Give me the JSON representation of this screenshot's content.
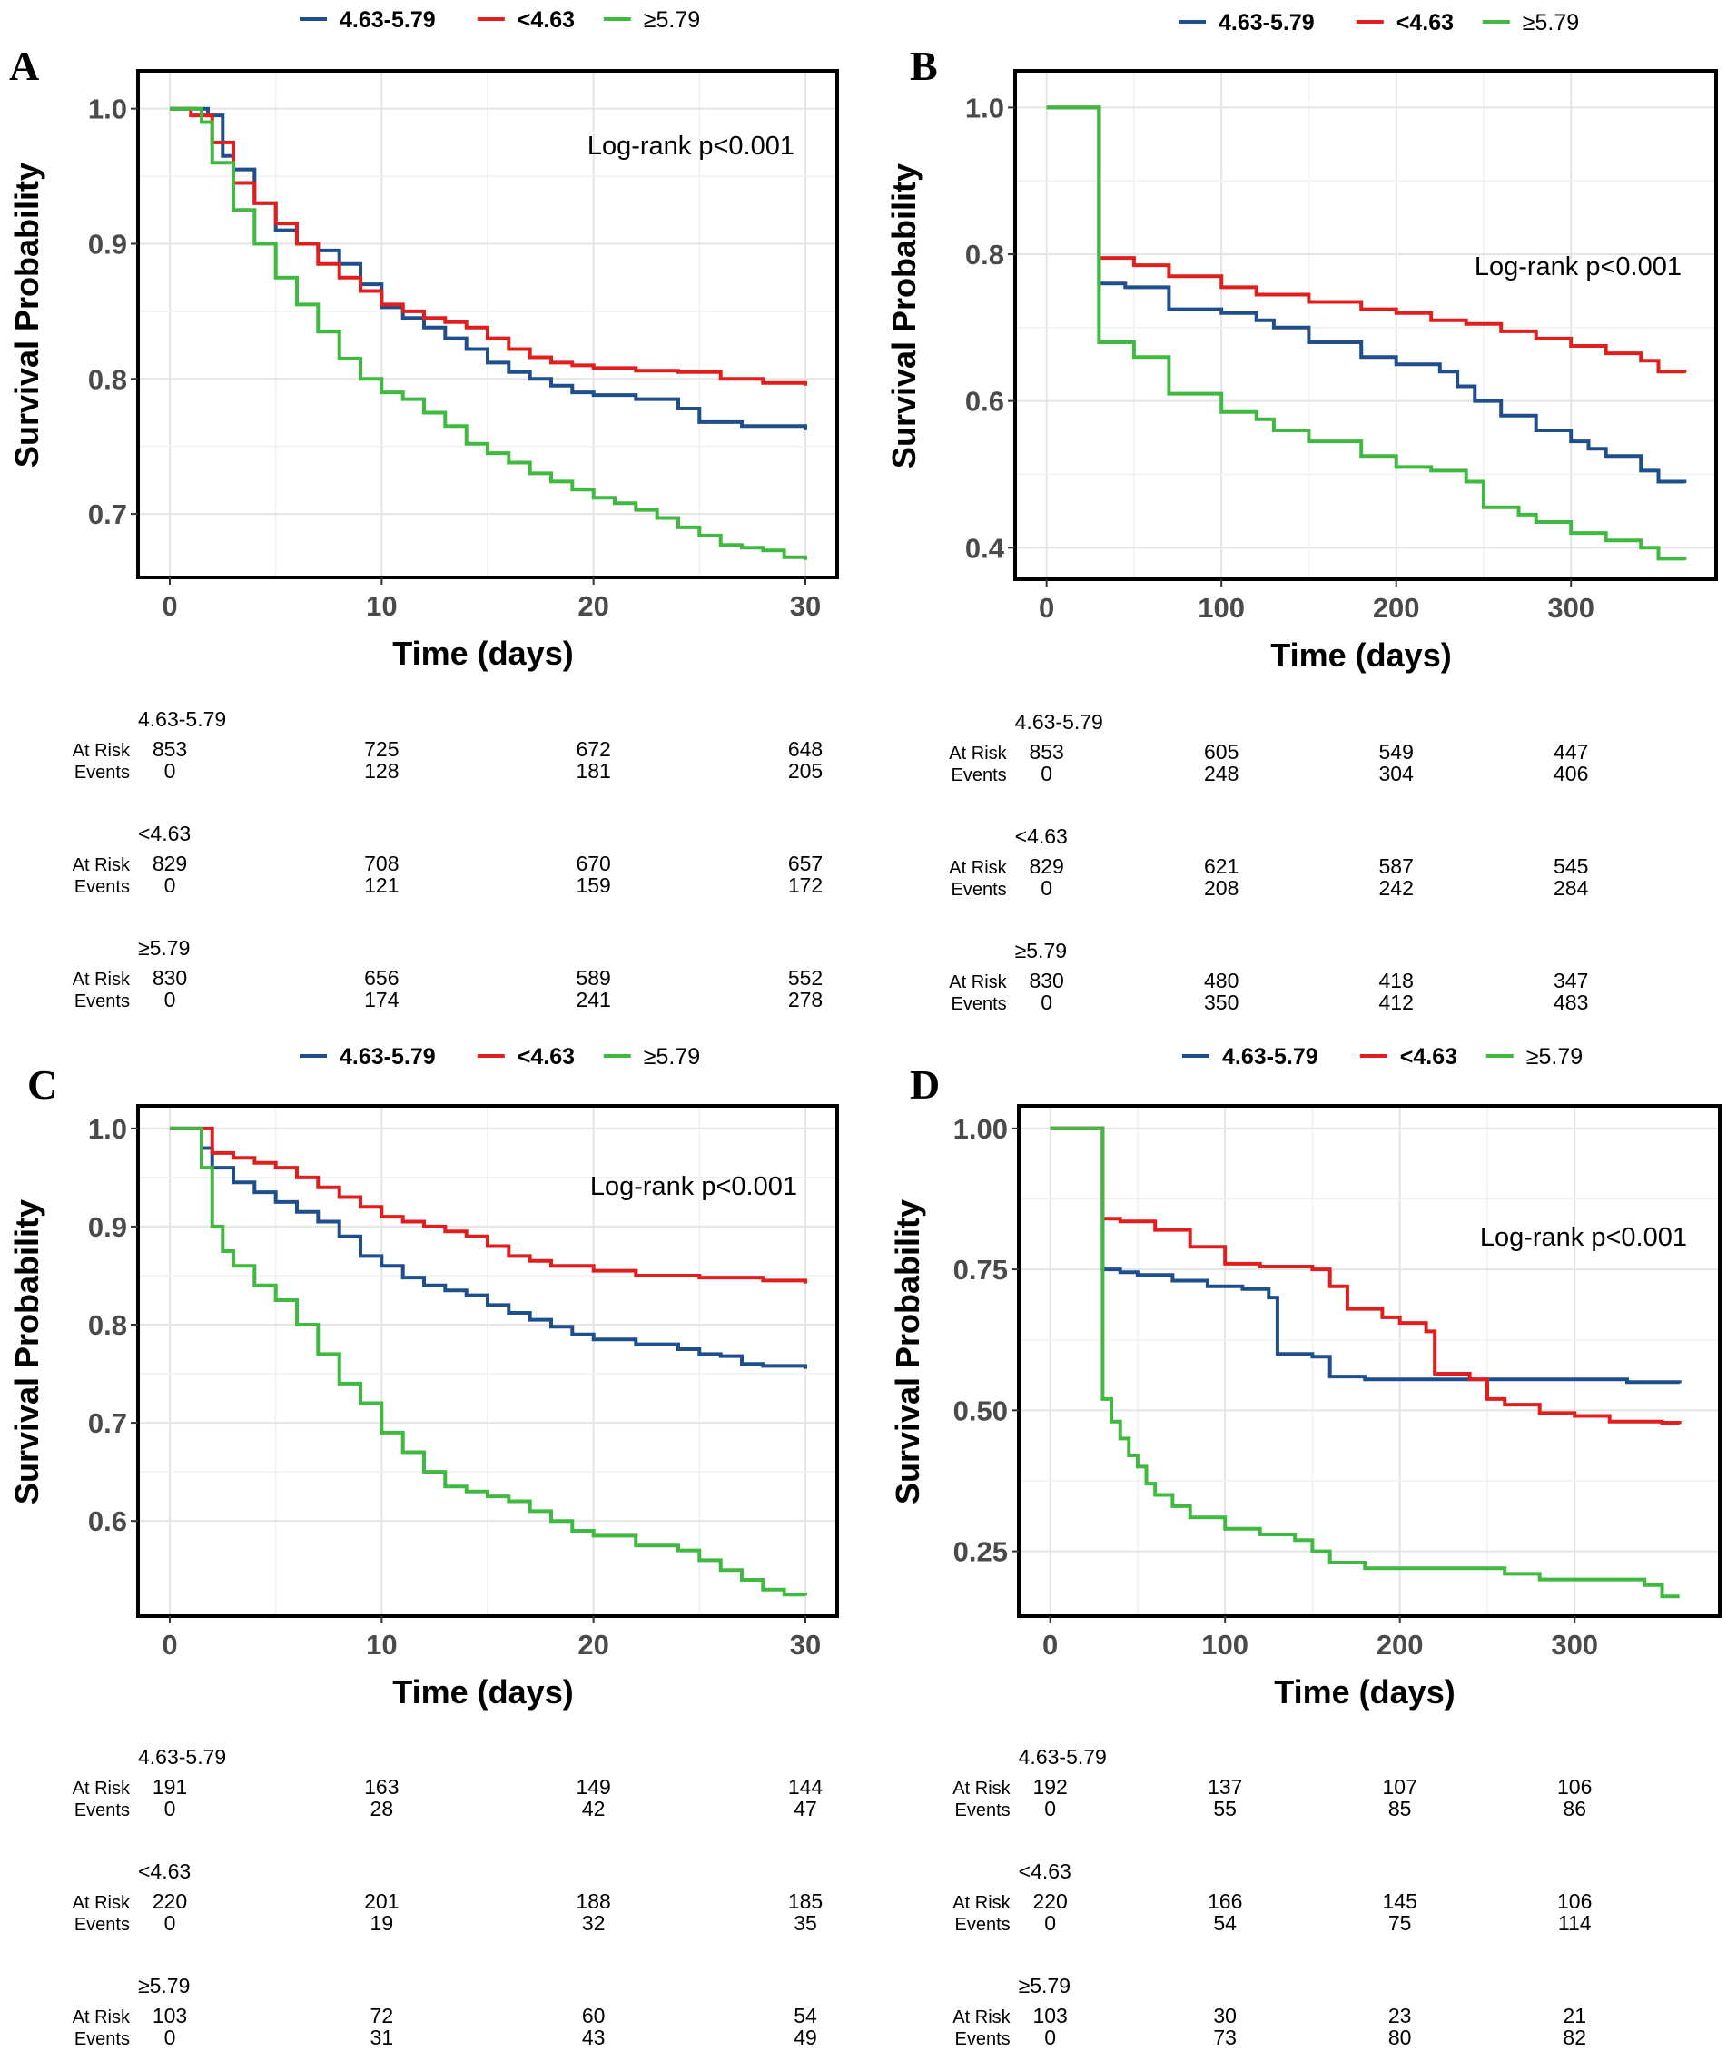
{
  "legend": {
    "items": [
      {
        "label": "4.63-5.79",
        "color": "#1f4e8c",
        "bold": true
      },
      {
        "label": "<4.63",
        "color": "#e01e1e",
        "bold": true
      },
      {
        "label": "≥5.79",
        "color": "#3fb93f",
        "bold": false
      }
    ]
  },
  "risk_row_labels": {
    "at_risk": "At Risk",
    "events": "Events"
  },
  "chart_data": [
    {
      "type": "line",
      "panel": "A",
      "xlabel": "Time (days)",
      "ylabel": "Survival Probability",
      "annotation": "Log-rank p<0.001",
      "xlim": [
        -1.5,
        31.5
      ],
      "ylim": [
        0.653,
        1.028
      ],
      "xticks": [
        0,
        10,
        20,
        30
      ],
      "yticks": [
        1.0,
        0.9,
        0.8,
        0.7
      ],
      "ytick_labels": [
        "1.0",
        "0.9",
        "0.8",
        "0.7"
      ],
      "grid": true,
      "series": [
        {
          "name": "4.63-5.79",
          "x": [
            0,
            1,
            1.8,
            2.5,
            3,
            4,
            5,
            6,
            7,
            8,
            9,
            10,
            11,
            12,
            13,
            14,
            15,
            16,
            17,
            18,
            19,
            20,
            22,
            24,
            25,
            27,
            30
          ],
          "y": [
            1.0,
            1.0,
            0.995,
            0.965,
            0.955,
            0.93,
            0.91,
            0.9,
            0.895,
            0.885,
            0.87,
            0.853,
            0.845,
            0.838,
            0.83,
            0.822,
            0.812,
            0.805,
            0.8,
            0.795,
            0.79,
            0.788,
            0.785,
            0.778,
            0.768,
            0.765,
            0.762
          ]
        },
        {
          "name": "<4.63",
          "x": [
            0,
            1,
            2,
            3,
            4,
            5,
            6,
            7,
            8,
            9,
            10,
            11,
            12,
            13,
            14,
            15,
            16,
            17,
            18,
            19,
            20,
            22,
            24,
            26,
            28,
            30
          ],
          "y": [
            1.0,
            0.995,
            0.975,
            0.945,
            0.93,
            0.915,
            0.9,
            0.885,
            0.875,
            0.865,
            0.855,
            0.85,
            0.845,
            0.842,
            0.838,
            0.83,
            0.822,
            0.816,
            0.812,
            0.81,
            0.808,
            0.806,
            0.805,
            0.8,
            0.797,
            0.795
          ]
        },
        {
          "name": "≥5.79",
          "x": [
            0,
            1,
            1.5,
            2,
            3,
            4,
            5,
            6,
            7,
            8,
            9,
            10,
            11,
            12,
            13,
            14,
            15,
            16,
            17,
            18,
            19,
            20,
            21,
            22,
            23,
            24,
            25,
            26,
            27,
            28,
            29,
            30
          ],
          "y": [
            1.0,
            1.0,
            0.99,
            0.96,
            0.925,
            0.9,
            0.875,
            0.855,
            0.835,
            0.815,
            0.8,
            0.79,
            0.785,
            0.775,
            0.765,
            0.752,
            0.745,
            0.738,
            0.73,
            0.724,
            0.718,
            0.712,
            0.708,
            0.703,
            0.697,
            0.69,
            0.684,
            0.677,
            0.675,
            0.673,
            0.668,
            0.666
          ]
        }
      ],
      "risk_table": {
        "times": [
          0,
          10,
          20,
          30
        ],
        "groups": [
          {
            "name": "4.63-5.79",
            "at_risk": [
              "853",
              "725",
              "672",
              "648"
            ],
            "events": [
              "0",
              "128",
              "181",
              "205"
            ]
          },
          {
            "name": "<4.63",
            "at_risk": [
              "829",
              "708",
              "670",
              "657"
            ],
            "events": [
              "0",
              "121",
              "159",
              "172"
            ]
          },
          {
            "name": "≥5.79",
            "at_risk": [
              "830",
              "656",
              "589",
              "552"
            ],
            "events": [
              "0",
              "174",
              "241",
              "278"
            ]
          }
        ]
      }
    },
    {
      "type": "line",
      "panel": "B",
      "xlabel": "Time (days)",
      "ylabel": "Survival Probability",
      "annotation": "Log-rank p<0.001",
      "xlim": [
        -18,
        383
      ],
      "ylim": [
        0.357,
        1.05
      ],
      "xticks": [
        0,
        100,
        200,
        300
      ],
      "yticks": [
        1.0,
        0.8,
        0.6,
        0.4
      ],
      "ytick_labels": [
        "1.0",
        "0.8",
        "0.6",
        "0.4"
      ],
      "grid": true,
      "series": [
        {
          "name": "4.63-5.79",
          "x": [
            0,
            30,
            30,
            45,
            70,
            100,
            120,
            130,
            150,
            180,
            200,
            225,
            235,
            245,
            260,
            280,
            300,
            310,
            320,
            340,
            350,
            365
          ],
          "y": [
            1.0,
            1.0,
            0.76,
            0.755,
            0.725,
            0.72,
            0.71,
            0.7,
            0.68,
            0.66,
            0.65,
            0.64,
            0.62,
            0.6,
            0.58,
            0.56,
            0.545,
            0.535,
            0.525,
            0.505,
            0.49,
            0.488
          ]
        },
        {
          "name": "<4.63",
          "x": [
            0,
            30,
            30,
            50,
            70,
            100,
            120,
            150,
            180,
            200,
            220,
            240,
            260,
            280,
            300,
            320,
            340,
            350,
            365
          ],
          "y": [
            1.0,
            1.0,
            0.795,
            0.785,
            0.77,
            0.755,
            0.745,
            0.735,
            0.725,
            0.72,
            0.71,
            0.705,
            0.695,
            0.685,
            0.675,
            0.665,
            0.655,
            0.64,
            0.638
          ]
        },
        {
          "name": "≥5.79",
          "x": [
            0,
            30,
            30,
            50,
            70,
            100,
            120,
            130,
            150,
            180,
            200,
            220,
            240,
            250,
            270,
            280,
            300,
            320,
            340,
            350,
            365
          ],
          "y": [
            1.0,
            1.0,
            0.68,
            0.66,
            0.61,
            0.585,
            0.575,
            0.56,
            0.545,
            0.525,
            0.51,
            0.505,
            0.49,
            0.455,
            0.445,
            0.435,
            0.42,
            0.41,
            0.4,
            0.385,
            0.383
          ]
        }
      ],
      "risk_table": {
        "times": [
          0,
          100,
          200,
          300
        ],
        "groups": [
          {
            "name": "4.63-5.79",
            "at_risk": [
              "853",
              "605",
              "549",
              "447"
            ],
            "events": [
              "0",
              "248",
              "304",
              "406"
            ]
          },
          {
            "name": "<4.63",
            "at_risk": [
              "829",
              "621",
              "587",
              "545"
            ],
            "events": [
              "0",
              "208",
              "242",
              "284"
            ]
          },
          {
            "name": "≥5.79",
            "at_risk": [
              "830",
              "480",
              "418",
              "347"
            ],
            "events": [
              "0",
              "350",
              "412",
              "483"
            ]
          }
        ]
      }
    },
    {
      "type": "line",
      "panel": "C",
      "xlabel": "Time (days)",
      "ylabel": "Survival Probability",
      "annotation": "Log-rank p<0.001",
      "xlim": [
        -1.5,
        31.5
      ],
      "ylim": [
        0.503,
        1.023
      ],
      "xticks": [
        0,
        10,
        20,
        30
      ],
      "yticks": [
        1.0,
        0.9,
        0.8,
        0.7,
        0.6
      ],
      "ytick_labels": [
        "1.0",
        "0.9",
        "0.8",
        "0.7",
        "0.6"
      ],
      "grid": true,
      "series": [
        {
          "name": "4.63-5.79",
          "x": [
            0,
            1,
            1.5,
            2,
            3,
            4,
            5,
            6,
            7,
            8,
            9,
            10,
            11,
            12,
            13,
            14,
            15,
            16,
            17,
            18,
            19,
            20,
            22,
            24,
            25,
            26,
            27,
            28,
            30
          ],
          "y": [
            1.0,
            1.0,
            0.98,
            0.96,
            0.945,
            0.935,
            0.925,
            0.915,
            0.905,
            0.89,
            0.87,
            0.86,
            0.848,
            0.84,
            0.835,
            0.83,
            0.82,
            0.812,
            0.805,
            0.798,
            0.79,
            0.785,
            0.78,
            0.775,
            0.77,
            0.768,
            0.76,
            0.758,
            0.755
          ]
        },
        {
          "name": "<4.63",
          "x": [
            0,
            1,
            2,
            3,
            4,
            5,
            6,
            7,
            8,
            9,
            10,
            11,
            12,
            13,
            14,
            15,
            16,
            17,
            18,
            20,
            22,
            25,
            28,
            30
          ],
          "y": [
            1.0,
            1.0,
            0.975,
            0.97,
            0.965,
            0.96,
            0.95,
            0.94,
            0.93,
            0.92,
            0.91,
            0.905,
            0.9,
            0.895,
            0.89,
            0.88,
            0.87,
            0.865,
            0.86,
            0.855,
            0.85,
            0.848,
            0.845,
            0.842
          ]
        },
        {
          "name": "≥5.79",
          "x": [
            0,
            1,
            1.5,
            2,
            2.5,
            3,
            4,
            5,
            6,
            7,
            8,
            9,
            10,
            11,
            12,
            13,
            14,
            15,
            16,
            17,
            18,
            19,
            20,
            22,
            24,
            25,
            26,
            27,
            28,
            29,
            30
          ],
          "y": [
            1.0,
            1.0,
            0.96,
            0.9,
            0.875,
            0.86,
            0.84,
            0.825,
            0.8,
            0.77,
            0.74,
            0.72,
            0.69,
            0.67,
            0.65,
            0.635,
            0.63,
            0.625,
            0.62,
            0.61,
            0.6,
            0.59,
            0.585,
            0.575,
            0.57,
            0.56,
            0.55,
            0.54,
            0.53,
            0.525,
            0.524
          ]
        }
      ],
      "risk_table": {
        "times": [
          0,
          10,
          20,
          30
        ],
        "groups": [
          {
            "name": "4.63-5.79",
            "at_risk": [
              "191",
              "163",
              "149",
              "144"
            ],
            "events": [
              "0",
              "28",
              "42",
              "47"
            ]
          },
          {
            "name": "<4.63",
            "at_risk": [
              "220",
              "201",
              "188",
              "185"
            ],
            "events": [
              "0",
              "19",
              "32",
              "35"
            ]
          },
          {
            "name": "≥5.79",
            "at_risk": [
              "103",
              "72",
              "60",
              "54"
            ],
            "events": [
              "0",
              "31",
              "43",
              "49"
            ]
          }
        ]
      }
    },
    {
      "type": "line",
      "panel": "D",
      "xlabel": "Time (days)",
      "ylabel": "Survival Probability",
      "annotation": "Log-rank p<0.001",
      "xlim": [
        -18,
        383
      ],
      "ylim": [
        0.135,
        1.04
      ],
      "xticks": [
        0,
        100,
        200,
        300
      ],
      "yticks": [
        1.0,
        0.75,
        0.5,
        0.25
      ],
      "ytick_labels": [
        "1.00",
        "0.75",
        "0.50",
        "0.25"
      ],
      "grid": true,
      "series": [
        {
          "name": "4.63-5.79",
          "x": [
            0,
            30,
            30,
            40,
            50,
            70,
            90,
            110,
            125,
            130,
            150,
            160,
            180,
            200,
            250,
            300,
            330,
            360
          ],
          "y": [
            1.0,
            1.0,
            0.75,
            0.745,
            0.74,
            0.73,
            0.72,
            0.715,
            0.7,
            0.6,
            0.595,
            0.56,
            0.555,
            0.555,
            0.555,
            0.555,
            0.55,
            0.548
          ]
        },
        {
          "name": "<4.63",
          "x": [
            0,
            30,
            30,
            40,
            60,
            80,
            100,
            120,
            150,
            160,
            170,
            190,
            200,
            215,
            220,
            240,
            250,
            260,
            280,
            300,
            320,
            350,
            360
          ],
          "y": [
            1.0,
            1.0,
            0.84,
            0.835,
            0.82,
            0.79,
            0.76,
            0.755,
            0.75,
            0.72,
            0.68,
            0.665,
            0.655,
            0.64,
            0.565,
            0.555,
            0.52,
            0.51,
            0.495,
            0.49,
            0.48,
            0.478,
            0.476
          ]
        },
        {
          "name": "≥5.79",
          "x": [
            0,
            30,
            30,
            35,
            40,
            45,
            50,
            55,
            60,
            70,
            80,
            100,
            120,
            140,
            150,
            160,
            180,
            200,
            250,
            260,
            280,
            300,
            330,
            340,
            350,
            360
          ],
          "y": [
            1.0,
            1.0,
            0.52,
            0.48,
            0.45,
            0.42,
            0.4,
            0.37,
            0.35,
            0.33,
            0.31,
            0.29,
            0.28,
            0.27,
            0.25,
            0.23,
            0.22,
            0.22,
            0.22,
            0.21,
            0.2,
            0.2,
            0.2,
            0.19,
            0.17,
            0.17
          ]
        }
      ],
      "risk_table": {
        "times": [
          0,
          100,
          200,
          300
        ],
        "groups": [
          {
            "name": "4.63-5.79",
            "at_risk": [
              "192",
              "137",
              "107",
              "106"
            ],
            "events": [
              "0",
              "55",
              "85",
              "86"
            ]
          },
          {
            "name": "<4.63",
            "at_risk": [
              "220",
              "166",
              "145",
              "106"
            ],
            "events": [
              "0",
              "54",
              "75",
              "114"
            ]
          },
          {
            "name": "≥5.79",
            "at_risk": [
              "103",
              "30",
              "23",
              "21"
            ],
            "events": [
              "0",
              "73",
              "80",
              "82"
            ]
          }
        ]
      }
    }
  ]
}
